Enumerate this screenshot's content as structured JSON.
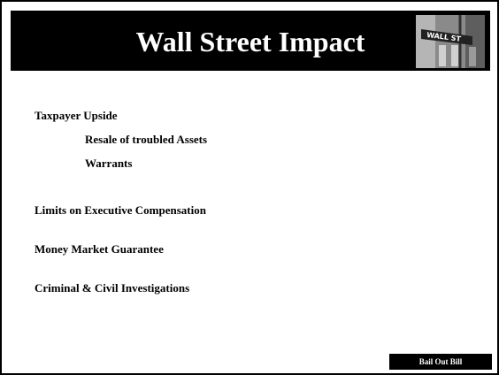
{
  "header": {
    "title": "Wall Street Impact",
    "image_sign": "WALL ST"
  },
  "items": [
    {
      "text": "Taxpayer Upside",
      "subitems": [
        "Resale of troubled Assets",
        "Warrants"
      ]
    },
    {
      "text": "Limits on Executive Compensation",
      "subitems": []
    },
    {
      "text": "Money Market Guarantee",
      "subitems": []
    },
    {
      "text": "Criminal & Civil Investigations",
      "subitems": []
    }
  ],
  "footer": {
    "label": "Bail Out Bill"
  }
}
